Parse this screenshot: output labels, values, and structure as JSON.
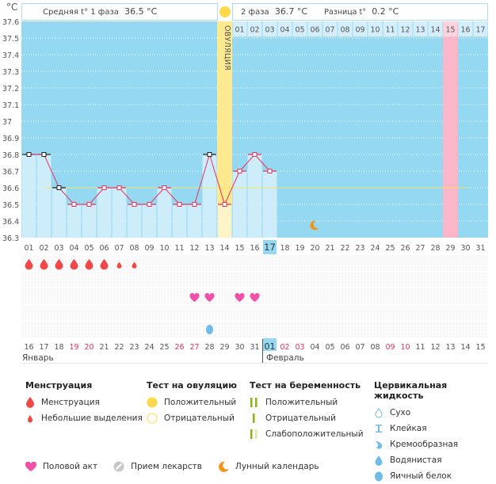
{
  "unit_label": "°C",
  "header": {
    "phase1_label": "Средняя t° 1 фаза",
    "phase1_value": "36.5 °C",
    "phase2_label": "2 фаза",
    "phase2_value": "36.7 °C",
    "diff_label": "Разница t°",
    "diff_value": "0.2 °C",
    "ovulation_label": "ОВУЛЯЦИЯ"
  },
  "colors": {
    "chart_bg": "#94d8f2",
    "bar_fill": "#cdedfb",
    "ovulation": "#fde98f",
    "ovulation_light": "#fdf5c8",
    "highlight_pink": "#fbb5c8",
    "line": "#e8305a",
    "coverline": "#f5e56a",
    "today": "#94d8f2",
    "menses": "#f04848",
    "heart": "#f050a8",
    "moon": "#f39418",
    "egg_white": "#6fbce8"
  },
  "chart_data": {
    "type": "line",
    "title": "",
    "xlabel": "Cycle day",
    "ylabel": "°C",
    "ylim": [
      36.3,
      37.6
    ],
    "yticks": [
      "37.6",
      "37.5",
      "37.4",
      "37.3",
      "37.2",
      "37.1",
      "37",
      "36.9",
      "36.8",
      "36.7",
      "36.6",
      "36.5",
      "36.4",
      "36.3"
    ],
    "cycle_days": [
      "01",
      "02",
      "03",
      "04",
      "05",
      "06",
      "07",
      "08",
      "09",
      "10",
      "11",
      "12",
      "13",
      "14",
      "15",
      "16",
      "17",
      "18",
      "19",
      "20",
      "21",
      "22",
      "23",
      "24",
      "25",
      "26",
      "27",
      "28",
      "29",
      "30",
      "31"
    ],
    "series": [
      {
        "name": "BBT",
        "days": [
          1,
          2,
          3,
          4,
          5,
          6,
          7,
          8,
          9,
          10,
          11,
          12,
          13,
          14,
          15,
          16,
          17
        ],
        "values": [
          36.8,
          36.8,
          36.6,
          36.5,
          36.5,
          36.6,
          36.6,
          36.5,
          36.5,
          36.6,
          36.5,
          36.5,
          36.8,
          36.5,
          36.7,
          36.8,
          36.7
        ],
        "black_markers": [
          1,
          2,
          3,
          13
        ]
      }
    ],
    "coverline": 36.6,
    "coverline_start_day": 2,
    "ovulation_day": 14,
    "today_day": 17,
    "highlight_day": 29,
    "luteal_day_numbers": [
      "01",
      "02",
      "03",
      "04",
      "05",
      "06",
      "07",
      "08",
      "09",
      "10",
      "11",
      "12",
      "13",
      "14",
      "15",
      "16",
      "17"
    ],
    "luteal_highlight": "15",
    "moon_day": 20,
    "moon_value": 36.35
  },
  "symptoms": {
    "menstruation_days": [
      1,
      2,
      3,
      4,
      5,
      6
    ],
    "spotting_days": [
      7,
      8
    ],
    "intercourse_days": [
      12,
      13,
      15,
      16
    ],
    "egg_white_days": [
      13
    ]
  },
  "calendar": {
    "dates": [
      "16",
      "17",
      "18",
      "19",
      "20",
      "21",
      "22",
      "23",
      "24",
      "25",
      "26",
      "27",
      "28",
      "29",
      "30",
      "31",
      "01",
      "02",
      "03",
      "04",
      "05",
      "06",
      "07",
      "08",
      "09",
      "10",
      "11",
      "12",
      "13",
      "14",
      "15"
    ],
    "red_indices": [
      3,
      4,
      10,
      11,
      17,
      18,
      24,
      25
    ],
    "today_index": 16,
    "month1": "Январь",
    "month2": "Февраль"
  },
  "legend": {
    "menstruation": {
      "title": "Менструация",
      "items": [
        "Менструация",
        "Небольшие выделения"
      ]
    },
    "ovulation_test": {
      "title": "Тест на овуляцию",
      "items": [
        "Положительный",
        "Отрицательный"
      ]
    },
    "pregnancy_test": {
      "title": "Тест на беременность",
      "items": [
        "Положительный",
        "Отрицательный",
        "Слабоположительный"
      ]
    },
    "cervical": {
      "title": "Цервикальная жидкость",
      "items": [
        "Сухо",
        "Клейкая",
        "Кремообразная",
        "Водянистая",
        "Яичный белок"
      ]
    },
    "bottom": [
      "Половой акт",
      "Прием лекарств",
      "Лунный календарь"
    ]
  }
}
